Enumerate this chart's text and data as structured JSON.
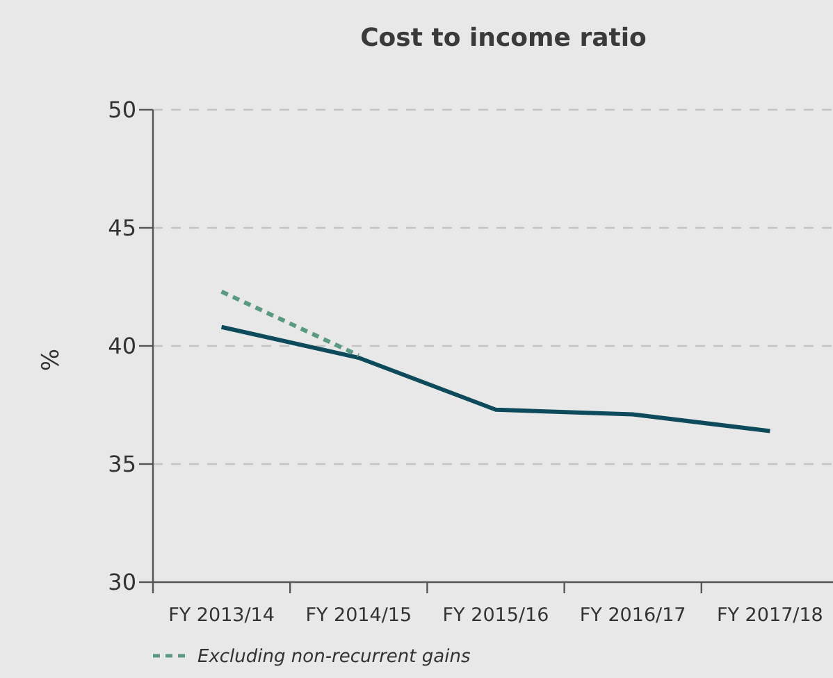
{
  "chart_data": {
    "type": "line",
    "title": "Cost to income ratio",
    "ylabel": "%",
    "categories": [
      "FY 2013/14",
      "FY 2014/15",
      "FY 2015/16",
      "FY 2016/17",
      "FY 2017/18"
    ],
    "series": [
      {
        "color": "#0d4a5c",
        "values": [
          40.8,
          39.5,
          37.3,
          37.1,
          36.4
        ],
        "line_style": "solid"
      },
      {
        "name": "Excluding non-recurrent gains",
        "color": "#5a9a80",
        "values": [
          42.3,
          39.6,
          null,
          null,
          null
        ],
        "line_style": "dotted"
      }
    ],
    "ylim": [
      30,
      50
    ],
    "yticks": [
      30,
      35,
      40,
      45,
      50
    ],
    "grid": "y",
    "legend": "bottom left"
  }
}
